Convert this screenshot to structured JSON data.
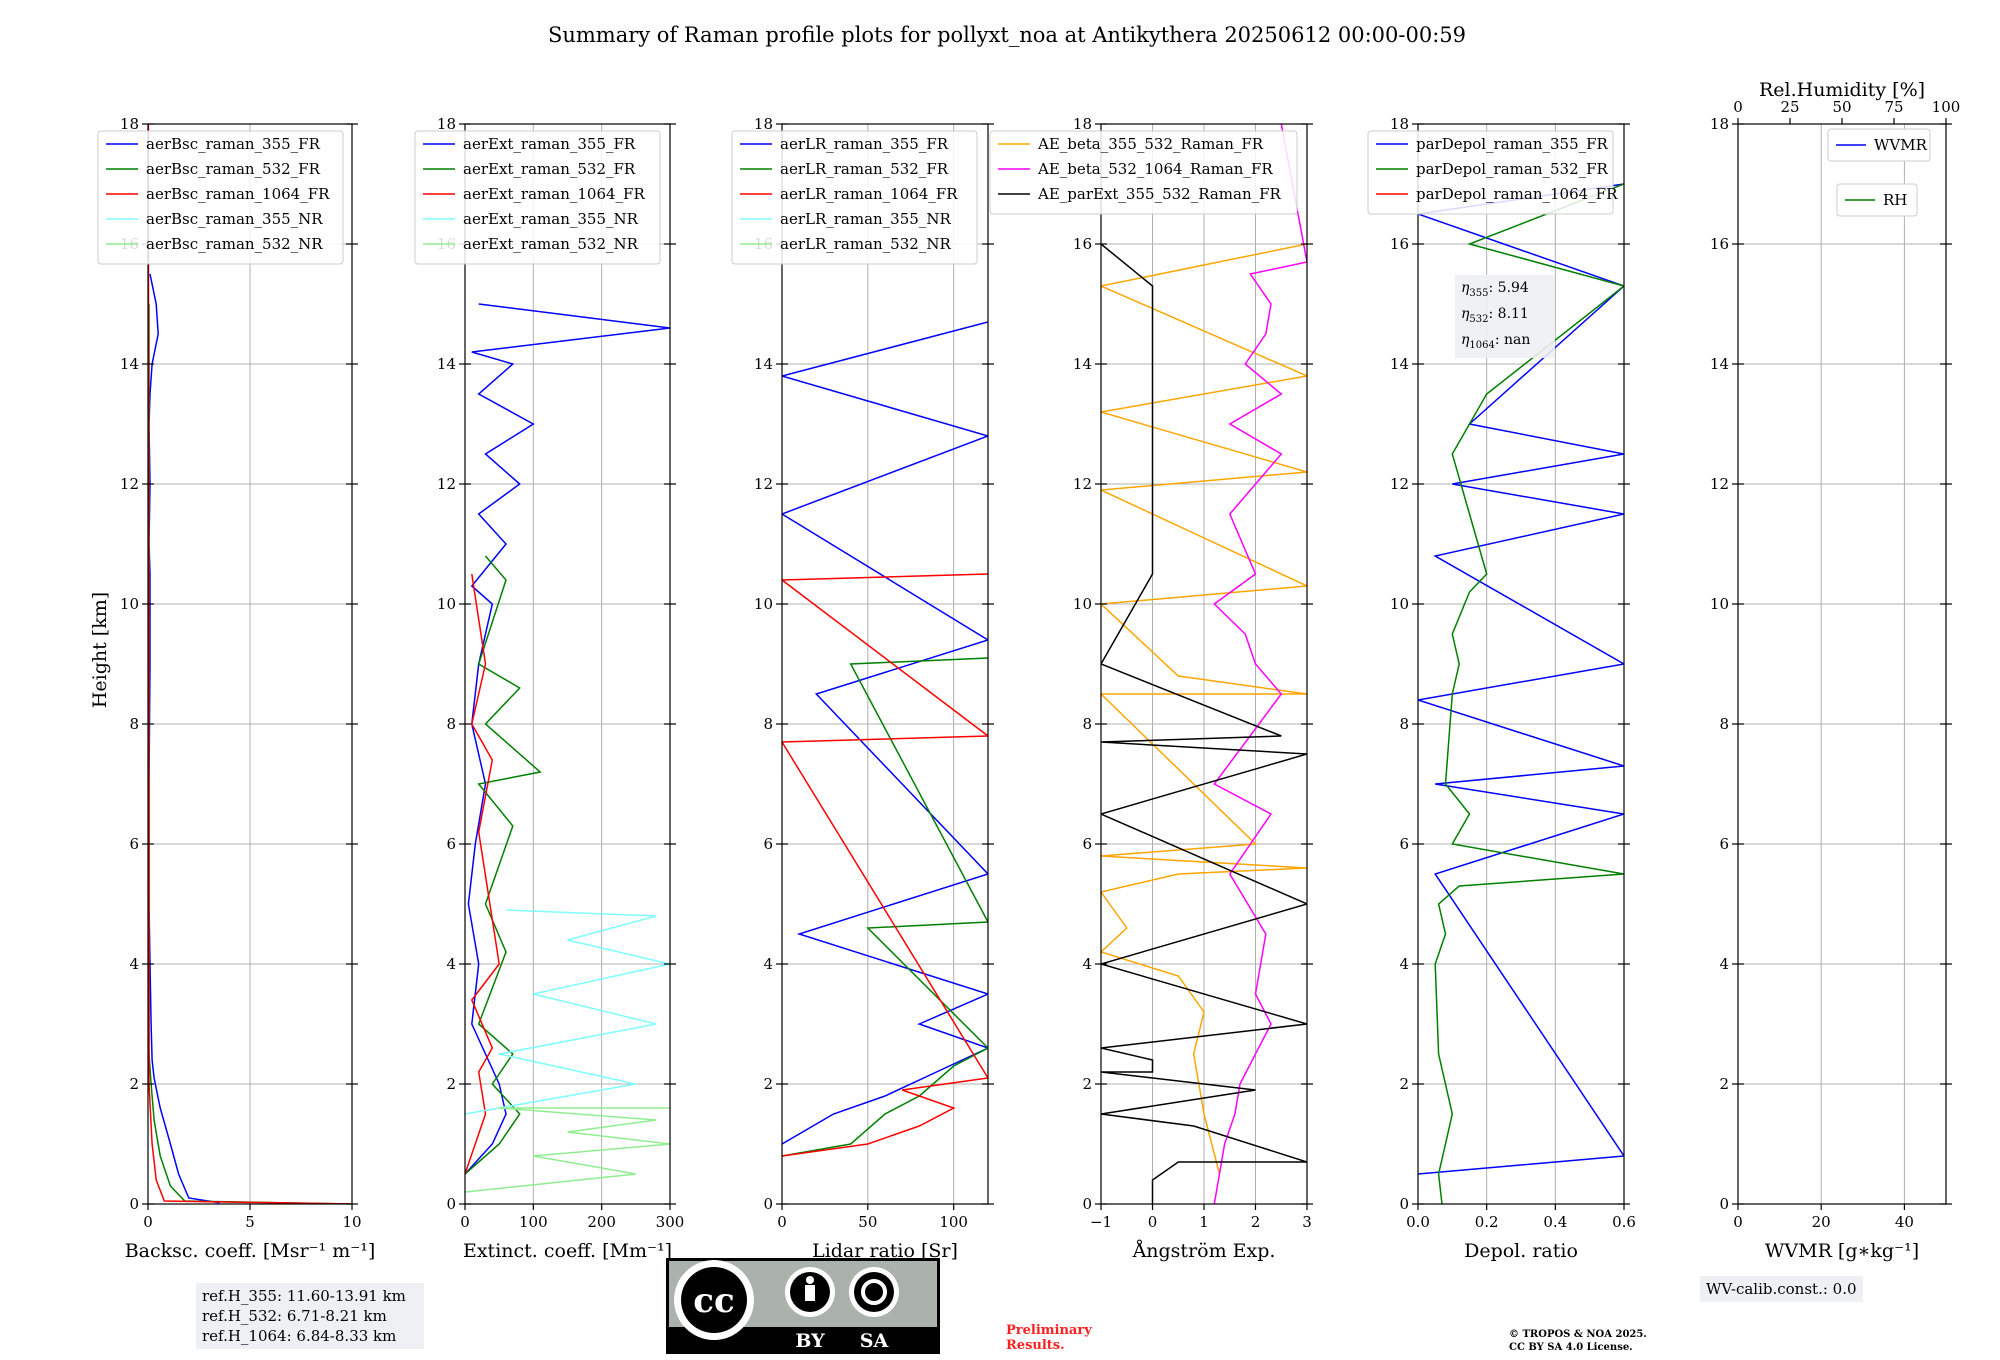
{
  "title": "Summary of Raman profile plots for pollyxt_noa at Antikythera 20250612 00:00-00:59",
  "ylabel": "Height [km]",
  "colors": {
    "blue": "#0000ff",
    "green": "#008000",
    "red": "#ff0000",
    "cyan": "#7fffff",
    "lightgreen": "#90ee90",
    "orange": "#ffa500",
    "magenta": "#ff00ff",
    "black": "#000000",
    "preliminary": "#ff2020"
  },
  "chart_data": [
    {
      "type": "line",
      "xlabel": "Backsc. coeff. [Msr⁻¹ m⁻¹]",
      "xlim": [
        0,
        10
      ],
      "ylim": [
        0,
        18
      ],
      "xticks": [
        "0",
        "5",
        "10"
      ],
      "yticks": [
        "0",
        "2",
        "4",
        "6",
        "8",
        "10",
        "12",
        "14",
        "16",
        "18"
      ],
      "legend": "top-left",
      "series": [
        {
          "name": "aerBsc_raman_355_FR",
          "color": "#0000ff",
          "x": [
            3.5,
            2.0,
            1.5,
            1.1,
            0.6,
            0.3,
            0.2,
            0.15,
            0.1,
            0.05,
            0.05,
            0.1,
            0.1,
            0.05,
            0.1,
            0.05,
            0.1,
            0.2,
            0.5,
            0.4,
            0.1
          ],
          "y": [
            0.02,
            0.1,
            0.5,
            1.0,
            1.6,
            2.1,
            2.4,
            3.0,
            4.0,
            5.0,
            7.0,
            9.0,
            10.5,
            11.0,
            12.0,
            13.0,
            13.5,
            14.0,
            14.5,
            15.0,
            15.5
          ]
        },
        {
          "name": "aerBsc_raman_532_FR",
          "color": "#008000",
          "x": [
            10,
            1.8,
            1.1,
            0.6,
            0.3,
            0.15,
            0.05,
            0.05
          ],
          "y": [
            0.0,
            0.05,
            0.3,
            0.8,
            1.4,
            2.0,
            2.5,
            15.0
          ]
        },
        {
          "name": "aerBsc_raman_1064_FR",
          "color": "#ff0000",
          "x": [
            10,
            0.8,
            0.4,
            0.2,
            0.05,
            0.02
          ],
          "y": [
            0.0,
            0.05,
            0.4,
            1.0,
            2.0,
            18
          ]
        },
        {
          "name": "aerBsc_raman_355_NR",
          "color": "#7fffff",
          "x": [],
          "y": []
        },
        {
          "name": "aerBsc_raman_532_NR",
          "color": "#90ee90",
          "x": [],
          "y": []
        }
      ]
    },
    {
      "type": "line",
      "xlabel": "Extinct. coeff. [Mm⁻¹]",
      "xlim": [
        0,
        300
      ],
      "ylim": [
        0,
        18
      ],
      "xticks": [
        "0",
        "100",
        "200",
        "300"
      ],
      "yticks": [
        "0",
        "2",
        "4",
        "6",
        "8",
        "10",
        "12",
        "14",
        "16",
        "18"
      ],
      "legend": "top-left",
      "series": [
        {
          "name": "aerExt_raman_355_FR",
          "color": "#0000ff",
          "x": [
            0,
            40,
            60,
            50,
            30,
            10,
            20,
            5,
            15,
            30,
            10,
            20,
            40,
            10,
            60,
            20,
            80,
            30,
            100,
            20,
            70,
            10,
            300,
            20
          ],
          "y": [
            0.5,
            1.0,
            1.5,
            2.0,
            2.5,
            3.0,
            4.0,
            5.0,
            6.0,
            7.0,
            8.0,
            9.0,
            10.0,
            10.3,
            11.0,
            11.5,
            12.0,
            12.5,
            13.0,
            13.5,
            14.0,
            14.2,
            14.6,
            15.0
          ]
        },
        {
          "name": "aerExt_raman_532_FR",
          "color": "#008000",
          "x": [
            0,
            50,
            80,
            40,
            70,
            20,
            60,
            30,
            70,
            20,
            110,
            30,
            80,
            20,
            60,
            30
          ],
          "y": [
            0.5,
            1.0,
            1.5,
            2.0,
            2.5,
            3.0,
            4.2,
            5.0,
            6.3,
            7.0,
            7.2,
            8.0,
            8.6,
            9.0,
            10.4,
            10.8
          ]
        },
        {
          "name": "aerExt_raman_1064_FR",
          "color": "#ff0000",
          "x": [
            0,
            30,
            20,
            40,
            10,
            50,
            20,
            40,
            10,
            30,
            10
          ],
          "y": [
            0.5,
            1.5,
            2.2,
            2.6,
            3.4,
            4.0,
            6.2,
            7.4,
            8.0,
            9.0,
            10.5
          ]
        },
        {
          "name": "aerExt_raman_355_NR",
          "color": "#7fffff",
          "x": [
            0,
            250,
            50,
            280,
            100,
            300,
            150,
            280,
            60
          ],
          "y": [
            1.5,
            2.0,
            2.5,
            3.0,
            3.5,
            4.0,
            4.4,
            4.8,
            4.9
          ]
        },
        {
          "name": "aerExt_raman_532_NR",
          "color": "#90ee90",
          "x": [
            0,
            250,
            100,
            300,
            150,
            280,
            50,
            300
          ],
          "y": [
            0.2,
            0.5,
            0.8,
            1.0,
            1.2,
            1.4,
            1.6,
            1.6
          ]
        }
      ]
    },
    {
      "type": "line",
      "xlabel": "Lidar ratio [Sr]",
      "xlim": [
        0,
        120
      ],
      "ylim": [
        0,
        18
      ],
      "xticks": [
        "0",
        "50",
        "100"
      ],
      "yticks": [
        "0",
        "2",
        "4",
        "6",
        "8",
        "10",
        "12",
        "14",
        "16",
        "18"
      ],
      "legend": "top-left",
      "series": [
        {
          "name": "aerLR_raman_355_FR",
          "color": "#0000ff",
          "x": [
            0,
            30,
            60,
            90,
            120,
            80,
            120,
            10,
            120,
            20,
            120,
            0,
            120,
            0,
            120
          ],
          "y": [
            1.0,
            1.5,
            1.8,
            2.2,
            2.6,
            3.0,
            3.5,
            4.5,
            5.5,
            8.5,
            9.4,
            11.5,
            12.8,
            13.8,
            14.7
          ]
        },
        {
          "name": "aerLR_raman_532_FR",
          "color": "#008000",
          "x": [
            0,
            40,
            60,
            80,
            100,
            120,
            50,
            120,
            40,
            120
          ],
          "y": [
            0.8,
            1.0,
            1.5,
            1.8,
            2.3,
            2.6,
            4.6,
            4.7,
            9.0,
            9.1
          ]
        },
        {
          "name": "aerLR_raman_1064_FR",
          "color": "#ff0000",
          "x": [
            0,
            50,
            80,
            100,
            70,
            120,
            0,
            120,
            0,
            120
          ],
          "y": [
            0.8,
            1.0,
            1.3,
            1.6,
            1.9,
            2.1,
            7.7,
            7.8,
            10.4,
            10.5
          ]
        },
        {
          "name": "aerLR_raman_355_NR",
          "color": "#7fffff",
          "x": [],
          "y": []
        },
        {
          "name": "aerLR_raman_532_NR",
          "color": "#90ee90",
          "x": [],
          "y": []
        }
      ]
    },
    {
      "type": "line",
      "xlabel": "Ångström Exp.",
      "xlim": [
        -1,
        3
      ],
      "ylim": [
        0,
        18
      ],
      "xticks": [
        "−1",
        "0",
        "1",
        "2",
        "3"
      ],
      "yticks": [
        "0",
        "2",
        "4",
        "6",
        "8",
        "10",
        "12",
        "14",
        "16",
        "18"
      ],
      "legend": "top-left",
      "series": [
        {
          "name": "AE_beta_355_532_Raman_FR",
          "color": "#ffa500",
          "x": [
            1.3,
            1.0,
            0.8,
            1.0,
            0.5,
            -1,
            -0.5,
            -1,
            0.5,
            3,
            -1,
            2,
            -1,
            3,
            0.5,
            -1,
            3,
            -1,
            3,
            -1,
            3,
            -1,
            3
          ],
          "y": [
            0.5,
            1.5,
            2.5,
            3.2,
            3.8,
            4.2,
            4.6,
            5.2,
            5.5,
            5.6,
            5.8,
            6.0,
            8.5,
            8.5,
            8.8,
            10.0,
            10.3,
            11.9,
            12.2,
            13.2,
            13.8,
            15.3,
            16.0
          ]
        },
        {
          "name": "AE_beta_532_1064_Raman_FR",
          "color": "#ff00ff",
          "x": [
            1.2,
            1.4,
            1.6,
            1.7,
            2.3,
            2.0,
            2.2,
            1.5,
            2.3,
            1.2,
            2.5,
            2.0,
            1.8,
            1.2,
            2.0,
            1.5,
            2.5,
            1.5,
            2.5,
            1.8,
            2.2,
            2.3,
            1.9,
            3,
            2.5
          ],
          "y": [
            0.0,
            1.0,
            1.5,
            2.0,
            3.0,
            3.5,
            4.5,
            5.5,
            6.5,
            7.0,
            8.5,
            9.0,
            9.5,
            10.0,
            10.5,
            11.5,
            12.5,
            13.0,
            13.5,
            14.0,
            14.5,
            15.0,
            15.5,
            15.7,
            18
          ]
        },
        {
          "name": "AE_parExt_355_532_Raman_FR",
          "color": "#000000",
          "x": [
            0,
            0,
            0.5,
            3,
            0.8,
            -1,
            2,
            -1,
            0,
            0,
            -1,
            3,
            -1,
            3,
            -1,
            3,
            -1,
            2.5,
            -1,
            0,
            0,
            -1
          ],
          "y": [
            0.0,
            0.4,
            0.7,
            0.7,
            1.3,
            1.5,
            1.9,
            2.2,
            2.2,
            2.4,
            2.6,
            3.0,
            4.0,
            5.0,
            6.5,
            7.5,
            7.7,
            7.8,
            9.0,
            10.5,
            15.3,
            16.0
          ]
        }
      ]
    },
    {
      "type": "line",
      "xlabel": "Depol. ratio",
      "xlim": [
        0,
        0.6
      ],
      "ylim": [
        0,
        18
      ],
      "xticks": [
        "0.0",
        "0.2",
        "0.4",
        "0.6"
      ],
      "yticks": [
        "0",
        "2",
        "4",
        "6",
        "8",
        "10",
        "12",
        "14",
        "16",
        "18"
      ],
      "legend": "top-left",
      "series": [
        {
          "name": "parDepol_raman_355_FR",
          "color": "#0000ff",
          "x": [
            0.0,
            0.6,
            0.05,
            0.6,
            0.05,
            0.6,
            0.0,
            0.6,
            0.05,
            0.6,
            0.1,
            0.6,
            0.15,
            0.6,
            0.0,
            0.6
          ],
          "y": [
            0.5,
            0.8,
            5.5,
            6.5,
            7.0,
            7.3,
            8.4,
            9.0,
            10.8,
            11.5,
            12.0,
            12.5,
            13.0,
            15.3,
            16.5,
            17.0
          ]
        },
        {
          "name": "parDepol_raman_532_FR",
          "color": "#008000",
          "x": [
            0.07,
            0.06,
            0.1,
            0.06,
            0.05,
            0.08,
            0.06,
            0.12,
            0.6,
            0.1,
            0.15,
            0.08,
            0.1,
            0.12,
            0.1,
            0.15,
            0.2,
            0.15,
            0.1,
            0.2,
            0.6,
            0.15,
            0.6
          ],
          "y": [
            0.0,
            0.5,
            1.5,
            2.5,
            4.0,
            4.5,
            5.0,
            5.3,
            5.5,
            6.0,
            6.5,
            7.0,
            8.5,
            9.0,
            9.5,
            10.2,
            10.5,
            11.5,
            12.5,
            13.5,
            15.3,
            16.0,
            17.0
          ]
        },
        {
          "name": "parDepol_raman_1064_FR",
          "color": "#ff0000",
          "x": [],
          "y": []
        }
      ]
    },
    {
      "type": "line",
      "xlabel": "WVMR [g∗kg⁻¹]",
      "x2label": "Rel.Humidity [%]",
      "xlim": [
        0,
        50
      ],
      "x2lim": [
        0,
        100
      ],
      "ylim": [
        0,
        18
      ],
      "xticks": [
        "0",
        "20",
        "40"
      ],
      "x2ticks": [
        "0",
        "25",
        "50",
        "75",
        "100"
      ],
      "yticks": [
        "0",
        "2",
        "4",
        "6",
        "8",
        "10",
        "12",
        "14",
        "16",
        "18"
      ],
      "legend": "top-right",
      "series": [
        {
          "name": "WVMR",
          "color": "#0000ff",
          "x": [],
          "y": []
        },
        {
          "name": "RH",
          "color": "#008000",
          "x": [],
          "y": []
        }
      ]
    }
  ],
  "reference_box": {
    "line1": "ref.H_355: 11.60-13.91 km",
    "line2": "ref.H_532: 6.71-8.21 km",
    "line3": "ref.H_1064: 6.84-8.33 km"
  },
  "eta_box": {
    "line1": "5.94",
    "line2": "8.11",
    "line3": "nan",
    "label1": "η",
    "sub1": "355",
    "label2": "η",
    "sub2": "532",
    "label3": "η",
    "sub3": "1064"
  },
  "wv_box": "WV-calib.const.: 0.0",
  "cc_badge": {
    "cc": "cc",
    "by": "BY",
    "sa": "SA"
  },
  "preliminary": {
    "line1": "Preliminary",
    "line2": "Results."
  },
  "copyright": {
    "line1": "© TROPOS & NOA 2025.",
    "line2": "CC BY SA 4.0 License."
  }
}
